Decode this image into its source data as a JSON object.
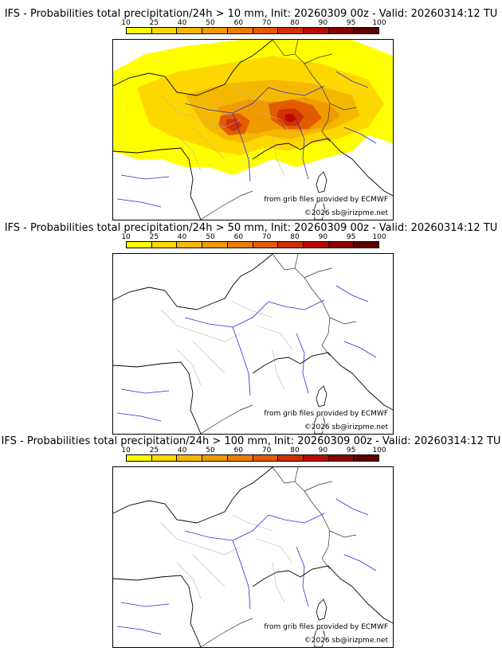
{
  "colorbar": {
    "ticks": [
      "10",
      "25",
      "40",
      "50",
      "60",
      "70",
      "80",
      "90",
      "95",
      "100"
    ],
    "colors": [
      "#ffff00",
      "#ffd700",
      "#f5b800",
      "#f09a00",
      "#ec7d00",
      "#e35b00",
      "#d23000",
      "#b80a00",
      "#8a0000",
      "#5a0000"
    ]
  },
  "panels": [
    {
      "title": "IFS - Probabilities total precipitation/24h > 10 mm, Init: 20260309 00z - Valid: 20260314:12 TU",
      "field": "high"
    },
    {
      "title": "IFS - Probabilities total precipitation/24h > 50 mm, Init: 20260309 00z - Valid: 20260314:12 TU",
      "field": "none"
    },
    {
      "title": "IFS - Probabilities total precipitation/24h > 100 mm, Init: 20260309 00z - Valid: 20260314:12 TU",
      "field": "none"
    }
  ],
  "credits": {
    "source": "from grib files provided by ECMWF",
    "copyright": "©2026 sb@irizpme.net"
  }
}
